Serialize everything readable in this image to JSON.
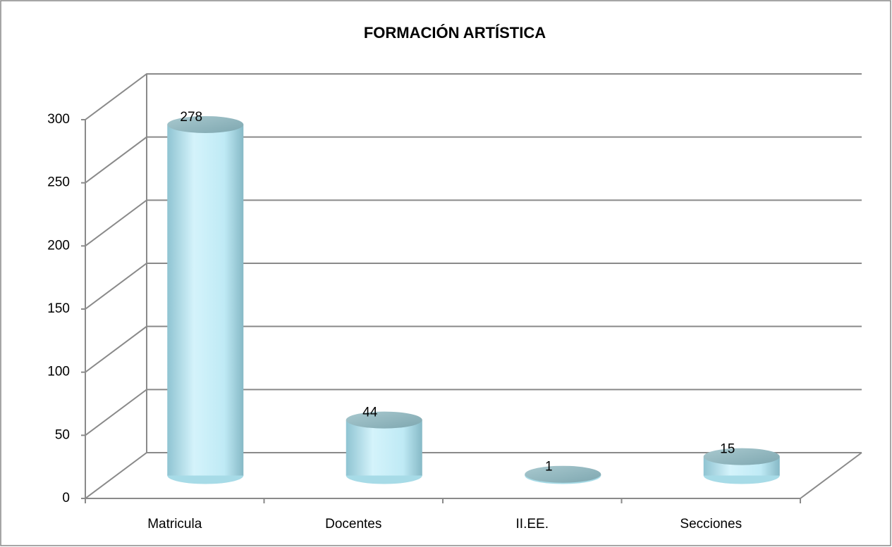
{
  "chart_data": {
    "type": "bar",
    "title": "FORMACIÓN ARTÍSTICA",
    "categories": [
      "Matricula",
      "Docentes",
      "II.EE.",
      "Secciones"
    ],
    "values": [
      278,
      44,
      1,
      15
    ],
    "color": "#b4e6f2",
    "ylim": [
      0,
      300
    ],
    "yticks": [
      0,
      50,
      100,
      150,
      200,
      250,
      300
    ],
    "grid": true
  }
}
